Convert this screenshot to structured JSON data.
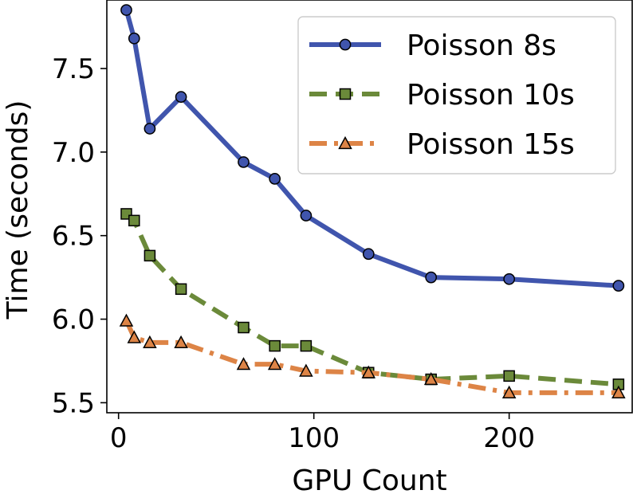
{
  "chart_data": {
    "type": "line",
    "title": "",
    "xlabel": "GPU Count",
    "ylabel": "Time (seconds)",
    "xlim": [
      -6,
      263
    ],
    "ylim": [
      5.44,
      7.91
    ],
    "xticks": [
      0,
      100,
      200
    ],
    "yticks": [
      5.5,
      6.0,
      6.5,
      7.0,
      7.5
    ],
    "xtick_labels": [
      "0",
      "100",
      "200"
    ],
    "ytick_labels": [
      "5.5",
      "6.0",
      "6.5",
      "7.0",
      "7.5"
    ],
    "grid": false,
    "legend_position": "top-right",
    "x": [
      4,
      8,
      16,
      32,
      64,
      80,
      96,
      128,
      160,
      200,
      256
    ],
    "series": [
      {
        "name": "Poisson 8s",
        "color": "#4055ad",
        "linestyle": "solid",
        "marker": "circle",
        "values": [
          7.85,
          7.68,
          7.14,
          7.33,
          6.94,
          6.84,
          6.62,
          6.39,
          6.25,
          6.24,
          6.2
        ]
      },
      {
        "name": "Poisson 10s",
        "color": "#6b8a3a",
        "linestyle": "dashed",
        "marker": "square",
        "values": [
          6.63,
          6.59,
          6.38,
          6.18,
          5.95,
          5.84,
          5.84,
          5.68,
          5.64,
          5.66,
          5.61
        ]
      },
      {
        "name": "Poisson 15s",
        "color": "#dd8446",
        "linestyle": "dashdot",
        "marker": "triangle",
        "values": [
          5.99,
          5.89,
          5.86,
          5.86,
          5.73,
          5.73,
          5.69,
          5.68,
          5.64,
          5.56,
          5.56
        ]
      }
    ]
  }
}
